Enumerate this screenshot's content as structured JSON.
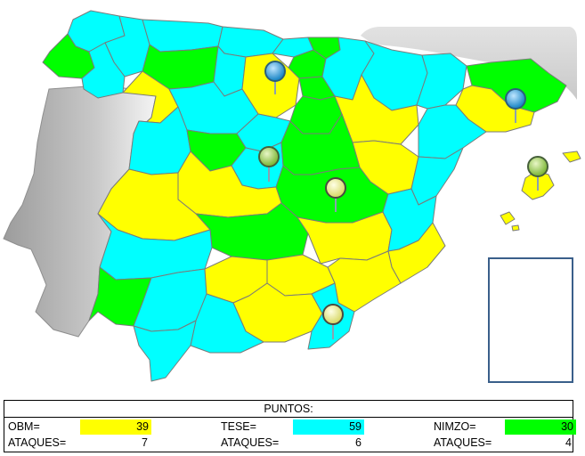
{
  "colors": {
    "obm": "#ffff00",
    "tese": "#00ffff",
    "nimzo": "#00ff00",
    "portugal": "#c8c8c8",
    "france": "#d9d9d9",
    "border": "#7a7a7a",
    "pin_blue": "#39a9e8",
    "pin_green": "#a6d96a",
    "pin_yellow": "#f3f3a0"
  },
  "map": {
    "pins": [
      {
        "name": "pin-blue-1",
        "color": "blue"
      },
      {
        "name": "pin-blue-2",
        "color": "blue"
      },
      {
        "name": "pin-green-1",
        "color": "green"
      },
      {
        "name": "pin-green-2",
        "color": "green"
      },
      {
        "name": "pin-yellow-1",
        "color": "yellow"
      },
      {
        "name": "pin-yellow-2",
        "color": "yellow"
      }
    ]
  },
  "scoreboard": {
    "title": "PUNTOS:",
    "teams": [
      {
        "label": "OBM=",
        "score": "39",
        "attacks_label": "ATAQUES=",
        "attacks": "7",
        "color": "#ffff00"
      },
      {
        "label": "TESE=",
        "score": "59",
        "attacks_label": "ATAQUES=",
        "attacks": "6",
        "color": "#00ffff"
      },
      {
        "label": "NIMZO=",
        "score": "30",
        "attacks_label": "ATAQUES=",
        "attacks": "4",
        "color": "#00ff00"
      }
    ]
  }
}
